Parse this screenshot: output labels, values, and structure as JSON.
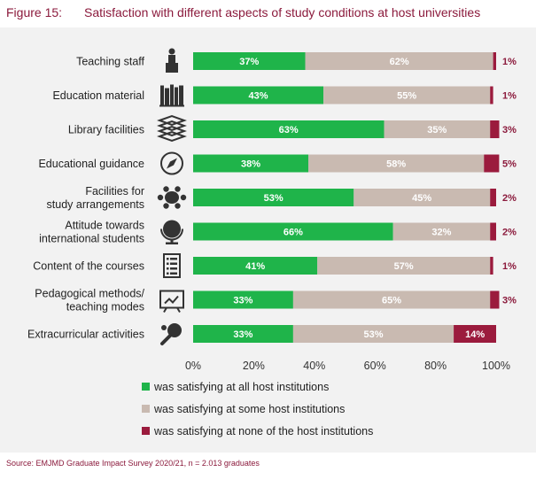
{
  "figure": {
    "number": "Figure 15:",
    "title": "Satisfaction with different aspects of study conditions at host universities"
  },
  "source": "Source: EMJMD Graduate Impact Survey 2020/21, n = 2.013 graduates",
  "colors": {
    "all": "#1fb44a",
    "some": "#c9bab1",
    "none": "#9b1b3d",
    "title": "#8b1a3c"
  },
  "chart_data": {
    "type": "bar",
    "orientation": "horizontal",
    "stacked": true,
    "categories": [
      [
        "Teaching staff"
      ],
      [
        "Education material"
      ],
      [
        "Library facilities"
      ],
      [
        "Educational guidance"
      ],
      [
        "Facilities for",
        "study arrangements"
      ],
      [
        "Attitude towards",
        "international students"
      ],
      [
        "Content of the courses"
      ],
      [
        "Pedagogical methods/",
        "teaching modes"
      ],
      [
        "Extracurricular activities"
      ]
    ],
    "icons": [
      "teacher-icon",
      "books-icon",
      "book-stack-icon",
      "compass-icon",
      "meeting-table-icon",
      "globe-icon",
      "checklist-icon",
      "presentation-board-icon",
      "ping-pong-icon"
    ],
    "series": [
      {
        "name": "was satisfying at all host institutions",
        "color": "#1fb44a",
        "values": [
          37,
          43,
          63,
          38,
          53,
          66,
          41,
          33,
          33
        ],
        "labels": [
          "37%",
          "43%",
          "63%",
          "38%",
          "53%",
          "66%",
          "41%",
          "33%",
          "33%"
        ]
      },
      {
        "name": "was satisfying at some host institutions",
        "color": "#c9bab1",
        "values": [
          62,
          55,
          35,
          58,
          45,
          32,
          57,
          65,
          53
        ],
        "labels": [
          "62%",
          "55%",
          "35%",
          "58%",
          "45%",
          "32%",
          "57%",
          "65%",
          "53%"
        ]
      },
      {
        "name": "was satisfying at none of the host institutions",
        "color": "#9b1b3d",
        "values": [
          1,
          1,
          3,
          5,
          2,
          2,
          1,
          3,
          14
        ],
        "labels": [
          "1%",
          "1%",
          "3%",
          "5%",
          "2%",
          "2%",
          "1%",
          "3%",
          "14%"
        ]
      }
    ],
    "xlim": [
      0,
      100
    ],
    "xticks": [
      "0%",
      "20%",
      "40%",
      "60%",
      "80%",
      "100%"
    ],
    "grid": false,
    "legend": "bottom"
  }
}
